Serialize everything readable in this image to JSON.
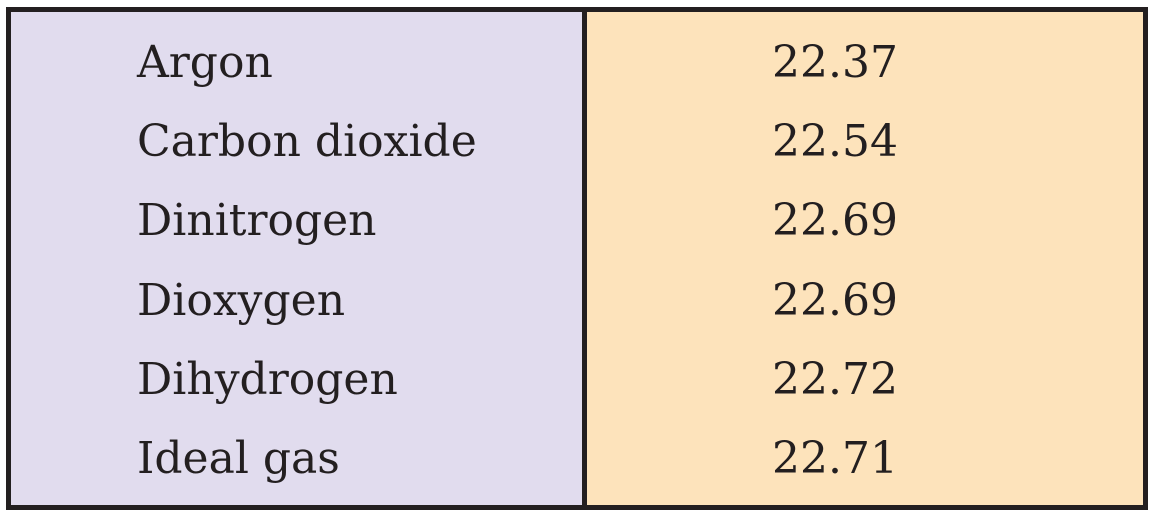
{
  "colors": {
    "gas_column_bg": "#e1dcee",
    "value_column_bg": "#fde3bb",
    "border": "#231f20",
    "text": "#231f20"
  },
  "table": {
    "rows": [
      {
        "gas": "Argon",
        "value": "22.37"
      },
      {
        "gas": "Carbon dioxide",
        "value": "22.54"
      },
      {
        "gas": "Dinitrogen",
        "value": "22.69"
      },
      {
        "gas": "Dioxygen",
        "value": "22.69"
      },
      {
        "gas": "Dihydrogen",
        "value": "22.72"
      },
      {
        "gas": "Ideal gas",
        "value": "22.71"
      }
    ]
  }
}
